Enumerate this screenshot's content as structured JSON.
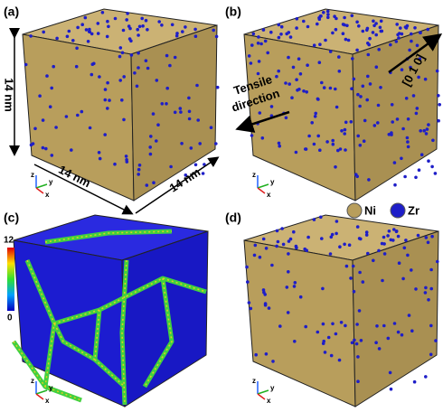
{
  "panels": [
    {
      "label": "(a)",
      "triad": [
        "z",
        "y",
        "x"
      ]
    },
    {
      "label": "(b)",
      "triad": [
        "z",
        "y",
        "x"
      ]
    },
    {
      "label": "(c)",
      "triad": [
        "z",
        "y",
        "x"
      ]
    },
    {
      "label": "(d)",
      "triad": [
        "z",
        "y",
        "x"
      ]
    }
  ],
  "dimensions": [
    "14 nm",
    "14 nm",
    "14 nm"
  ],
  "tensile_label": [
    "Tensile",
    "direction"
  ],
  "direction": "[0 1 0]",
  "legend": [
    {
      "label": "Ni"
    },
    {
      "label": "Zr"
    }
  ],
  "colorbar": {
    "max": 12,
    "min": 0
  }
}
